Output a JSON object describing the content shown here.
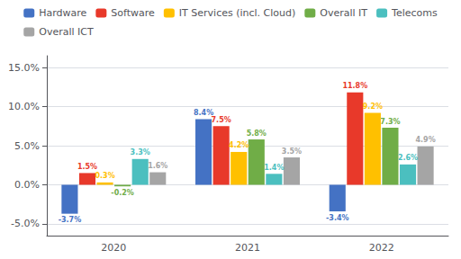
{
  "chart_data": {
    "type": "bar",
    "categories": [
      "2020",
      "2021",
      "2022"
    ],
    "series": [
      {
        "name": "Hardware",
        "color": "#4472c4",
        "values": [
          -3.7,
          8.4,
          -3.4
        ],
        "value_labels": [
          "-3.7%",
          "8.4%",
          "-3.4%"
        ]
      },
      {
        "name": "Software",
        "color": "#e8392a",
        "values": [
          1.5,
          7.5,
          11.8
        ],
        "value_labels": [
          "1.5%",
          "7.5%",
          "11.8%"
        ]
      },
      {
        "name": "IT Services (incl. Cloud)",
        "color": "#ffc000",
        "values": [
          0.3,
          4.2,
          9.2
        ],
        "value_labels": [
          "0.3%",
          "4.2%",
          "9.2%"
        ]
      },
      {
        "name": "Overall IT",
        "color": "#70ad47",
        "values": [
          -0.2,
          5.8,
          7.3
        ],
        "value_labels": [
          "-0.2%",
          "5.8%",
          "7.3%"
        ]
      },
      {
        "name": "Telecoms",
        "color": "#4bbfbf",
        "values": [
          3.3,
          1.4,
          2.6
        ],
        "value_labels": [
          "3.3%",
          "1.4%",
          "2.6%"
        ]
      },
      {
        "name": "Overall ICT",
        "color": "#a5a5a5",
        "values": [
          1.6,
          3.5,
          4.9
        ],
        "value_labels": [
          "1.6%",
          "3.5%",
          "4.9%"
        ]
      }
    ],
    "ylim": [
      -6.5,
      16.5
    ],
    "yticks": [
      {
        "value": -5.0,
        "label": "-5.0%"
      },
      {
        "value": 0.0,
        "label": "0.0%"
      },
      {
        "value": 5.0,
        "label": "5.0%"
      },
      {
        "value": 10.0,
        "label": "10.0%"
      },
      {
        "value": 15.0,
        "label": "15.0%"
      }
    ],
    "grid": true,
    "legend": "top",
    "data_labels": true
  }
}
